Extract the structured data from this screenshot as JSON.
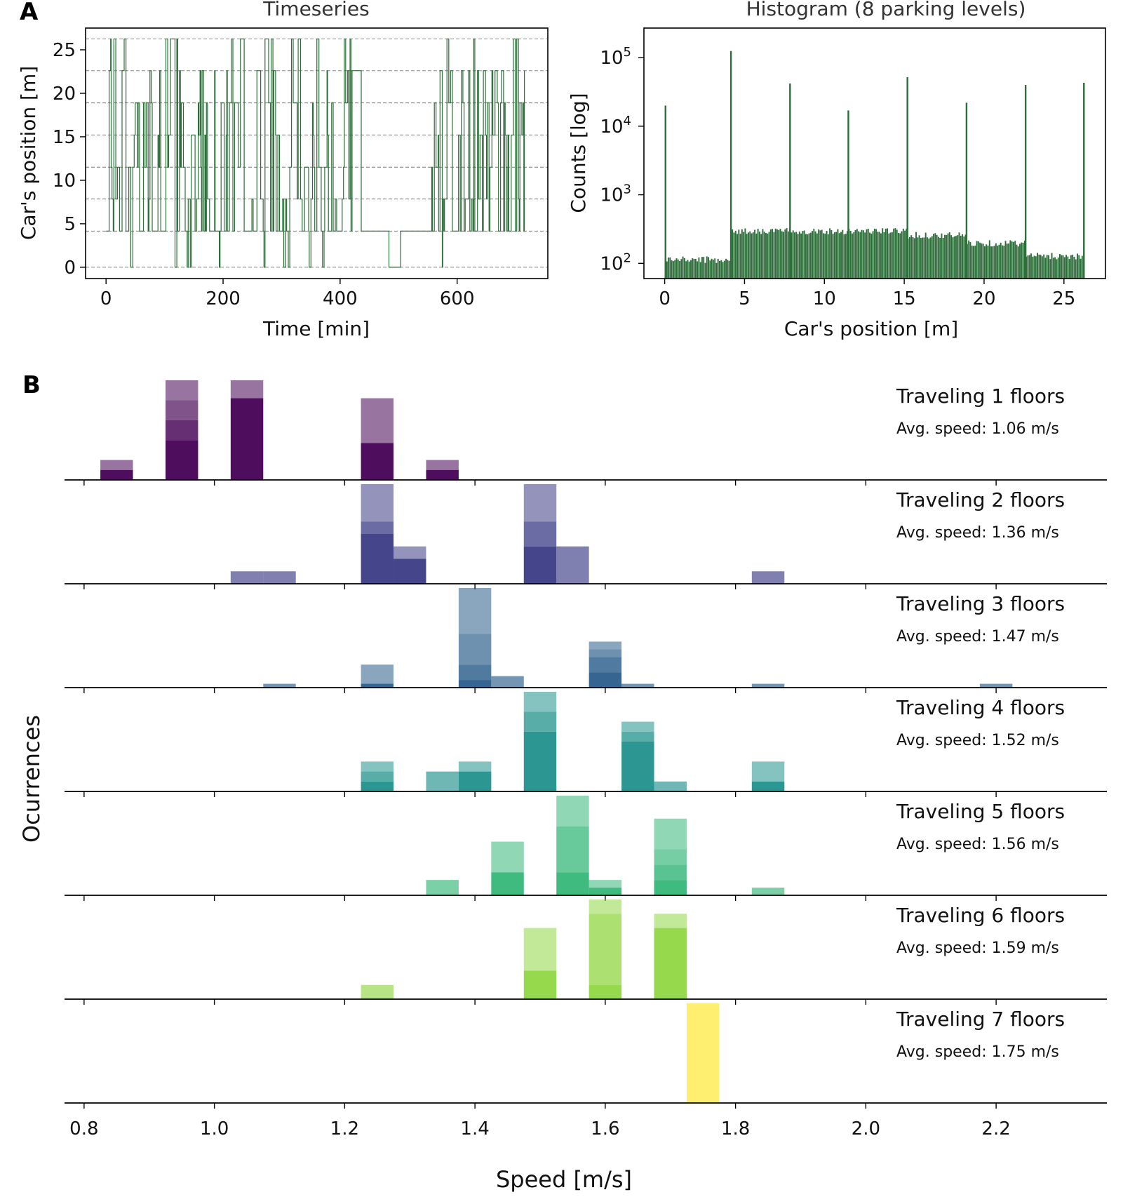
{
  "panel_a_letter": "A",
  "panel_b_letter": "B",
  "chart_data": [
    {
      "type": "line",
      "title": "Timeseries",
      "xlabel": "Time [min]",
      "ylabel": "Car's position [m]",
      "xlim": [
        -35,
        755
      ],
      "ylim": [
        -1.3,
        27.5
      ],
      "xticks": [
        0,
        200,
        400,
        600
      ],
      "yticks": [
        0,
        5,
        10,
        15,
        20,
        25
      ],
      "levels": [
        0,
        4.15,
        7.85,
        11.5,
        15.2,
        18.9,
        22.6,
        26.25
      ],
      "color": "#2e6e3a",
      "note": "Car position steps between 8 parking levels over ~715 minutes; sparse movement between ~420 and ~530 min."
    },
    {
      "type": "bar",
      "title": "Histogram (8 parking levels)",
      "xlabel": "Car's position [m]",
      "ylabel": "Counts [log]",
      "yscale": "log",
      "xlim": [
        -1.3,
        27.6
      ],
      "ylim": [
        60,
        270000
      ],
      "xticks": [
        0,
        5,
        10,
        15,
        20,
        25
      ],
      "yticks": [
        {
          "base": "10",
          "exp": "2"
        },
        {
          "base": "10",
          "exp": "3"
        },
        {
          "base": "10",
          "exp": "4"
        },
        {
          "base": "10",
          "exp": "5"
        }
      ],
      "baseline_segments": [
        {
          "from": 0.0,
          "to": 4.1,
          "count": 115
        },
        {
          "from": 4.1,
          "to": 15.2,
          "count": 300
        },
        {
          "from": 15.2,
          "to": 18.9,
          "count": 260
        },
        {
          "from": 18.9,
          "to": 22.6,
          "count": 200
        },
        {
          "from": 22.6,
          "to": 26.3,
          "count": 130
        }
      ],
      "peaks": [
        {
          "x": 0.05,
          "count": 20000
        },
        {
          "x": 4.15,
          "count": 125000
        },
        {
          "x": 7.85,
          "count": 42000
        },
        {
          "x": 11.5,
          "count": 17000
        },
        {
          "x": 15.2,
          "count": 52000
        },
        {
          "x": 18.9,
          "count": 22000
        },
        {
          "x": 22.6,
          "count": 40000
        },
        {
          "x": 26.25,
          "count": 43000
        }
      ],
      "color": "#2e6e3a"
    },
    {
      "type": "bar",
      "xlabel": "Speed [m/s]",
      "ylabel": "Ocurrences",
      "xlim": [
        0.77,
        2.37
      ],
      "xticks": [
        "0.8",
        "1.0",
        "1.2",
        "1.4",
        "1.6",
        "1.8",
        "2.0",
        "2.2"
      ],
      "bin_width": 0.05,
      "rows": [
        {
          "title": "Traveling 1 floors",
          "subtitle": "Avg. speed: 1.06 m/s",
          "color": "#440154",
          "bars": [
            {
              "x": 0.85,
              "total": 2,
              "layers": [
                1,
                1
              ]
            },
            {
              "x": 0.95,
              "total": 10,
              "layers": [
                4,
                2,
                2,
                2
              ]
            },
            {
              "x": 1.05,
              "total": 10,
              "layers": [
                8.2,
                1.8
              ]
            },
            {
              "x": 1.25,
              "total": 8.2,
              "layers": [
                3.7,
                4.5
              ]
            },
            {
              "x": 1.35,
              "total": 2,
              "layers": [
                1,
                1
              ]
            }
          ]
        },
        {
          "title": "Traveling 2 floors",
          "subtitle": "Avg. speed: 1.36 m/s",
          "color": "#3b3b85",
          "bars": [
            {
              "x": 1.05,
              "total": 1,
              "layers": [
                1
              ]
            },
            {
              "x": 1.1,
              "total": 1,
              "layers": [
                1
              ]
            },
            {
              "x": 1.25,
              "total": 8,
              "layers": [
                4,
                1,
                3
              ]
            },
            {
              "x": 1.3,
              "total": 3,
              "layers": [
                2,
                1
              ]
            },
            {
              "x": 1.5,
              "total": 8,
              "layers": [
                3,
                2,
                3
              ]
            },
            {
              "x": 1.55,
              "total": 3,
              "layers": [
                3
              ]
            },
            {
              "x": 1.85,
              "total": 1,
              "layers": [
                1
              ]
            }
          ]
        },
        {
          "title": "Traveling 3 floors",
          "subtitle": "Avg. speed: 1.47 m/s",
          "color": "#2a5d8a",
          "bars": [
            {
              "x": 1.1,
              "total": 0.5,
              "layers": [
                0.5
              ]
            },
            {
              "x": 1.25,
              "total": 3,
              "layers": [
                0.5,
                2.5
              ]
            },
            {
              "x": 1.4,
              "total": 13,
              "layers": [
                1,
                2,
                4,
                6
              ]
            },
            {
              "x": 1.45,
              "total": 1.5,
              "layers": [
                1.5
              ]
            },
            {
              "x": 1.6,
              "total": 6,
              "layers": [
                2,
                2,
                1,
                1
              ]
            },
            {
              "x": 1.65,
              "total": 0.5,
              "layers": [
                0.5
              ]
            },
            {
              "x": 1.85,
              "total": 0.5,
              "layers": [
                0.5
              ]
            },
            {
              "x": 2.2,
              "total": 0.5,
              "layers": [
                0.5
              ]
            }
          ]
        },
        {
          "title": "Traveling 4 floors",
          "subtitle": "Avg. speed: 1.52 m/s",
          "color": "#21918c",
          "bars": [
            {
              "x": 1.25,
              "total": 3,
              "layers": [
                1,
                1,
                1
              ]
            },
            {
              "x": 1.35,
              "total": 2,
              "layers": [
                2
              ]
            },
            {
              "x": 1.4,
              "total": 3,
              "layers": [
                2,
                1
              ]
            },
            {
              "x": 1.5,
              "total": 10,
              "layers": [
                6,
                2,
                2
              ]
            },
            {
              "x": 1.65,
              "total": 7,
              "layers": [
                5,
                1,
                1
              ]
            },
            {
              "x": 1.7,
              "total": 1,
              "layers": [
                1
              ]
            },
            {
              "x": 1.85,
              "total": 3,
              "layers": [
                1,
                2
              ]
            }
          ]
        },
        {
          "title": "Traveling 5 floors",
          "subtitle": "Avg. speed: 1.56 m/s",
          "color": "#35b779",
          "bars": [
            {
              "x": 1.35,
              "total": 2,
              "layers": [
                2
              ]
            },
            {
              "x": 1.45,
              "total": 7,
              "layers": [
                3,
                4
              ]
            },
            {
              "x": 1.55,
              "total": 13,
              "layers": [
                3,
                6,
                4
              ]
            },
            {
              "x": 1.6,
              "total": 2,
              "layers": [
                1,
                1
              ]
            },
            {
              "x": 1.7,
              "total": 10,
              "layers": [
                2,
                2,
                2,
                4
              ]
            },
            {
              "x": 1.85,
              "total": 1,
              "layers": [
                1
              ]
            }
          ]
        },
        {
          "title": "Traveling 6 floors",
          "subtitle": "Avg. speed: 1.59 m/s",
          "color": "#90d743",
          "bars": [
            {
              "x": 1.25,
              "total": 1,
              "layers": [
                1
              ]
            },
            {
              "x": 1.5,
              "total": 5,
              "layers": [
                2,
                3
              ]
            },
            {
              "x": 1.6,
              "total": 7,
              "layers": [
                1,
                5,
                1
              ]
            },
            {
              "x": 1.7,
              "total": 6,
              "layers": [
                5,
                1
              ]
            }
          ]
        },
        {
          "title": "Traveling 7 floors",
          "subtitle": "Avg. speed: 1.75 m/s",
          "color": "#fde725",
          "bars": [
            {
              "x": 1.75,
              "total": 1,
              "layers": [
                1
              ]
            }
          ]
        }
      ]
    }
  ]
}
